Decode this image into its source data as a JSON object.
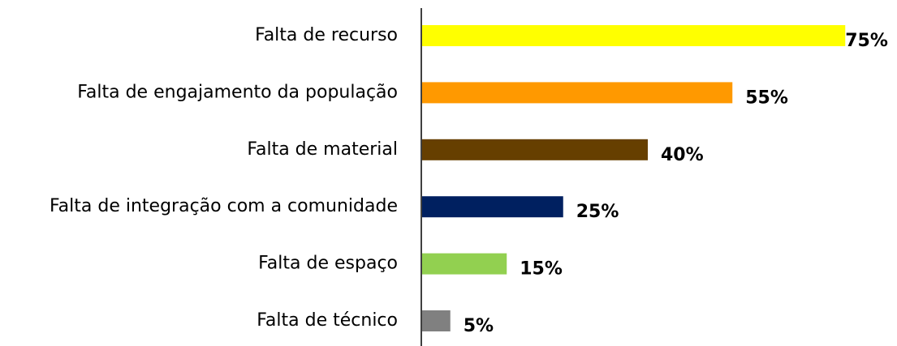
{
  "chart_data": {
    "type": "barh",
    "categories": [
      "Falta de recurso",
      "Falta de engajamento da população",
      "Falta de material",
      "Falta de integração com a comunidade",
      "Falta de espaço",
      "Falta de técnico"
    ],
    "values": [
      75,
      55,
      40,
      25,
      15,
      5
    ],
    "value_labels": [
      "75%",
      "55%",
      "40%",
      "25%",
      "15%",
      "5%"
    ],
    "colors": [
      "#ffff00",
      "#ff9900",
      "#663f00",
      "#002060",
      "#92d050",
      "#808080"
    ]
  }
}
